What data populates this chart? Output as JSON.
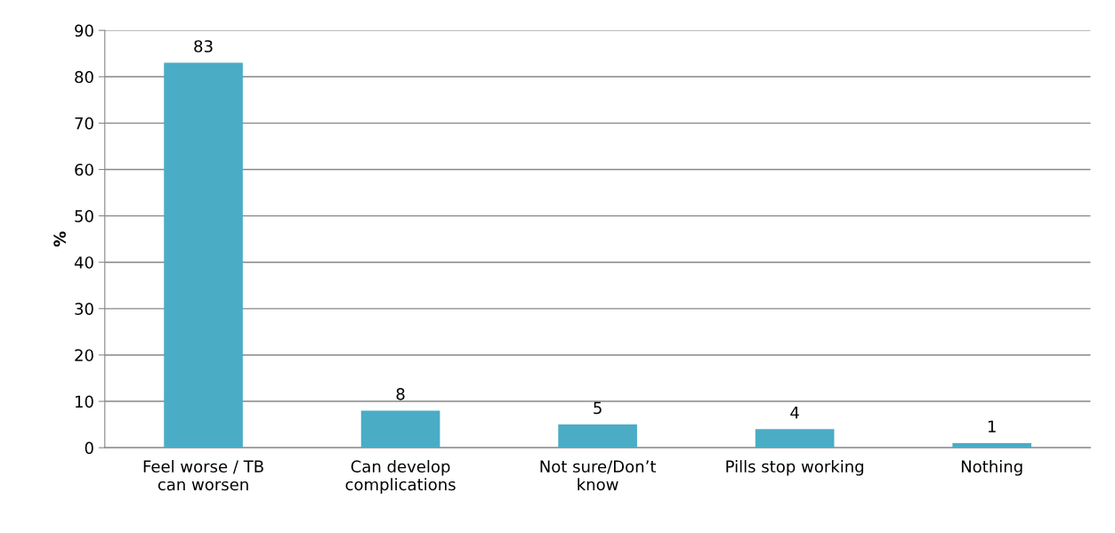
{
  "chart_data": {
    "type": "bar",
    "ylabel": "%",
    "categories": [
      "Feel worse / TB can worsen",
      "Can develop complications",
      "Not sure/Don’t know",
      "Pills stop working",
      "Nothing"
    ],
    "values": [
      83,
      8,
      5,
      4,
      1
    ],
    "color": "#4bacc6",
    "ylim": [
      0,
      90
    ],
    "yticks": [
      0,
      10,
      20,
      30,
      40,
      50,
      60,
      70,
      80,
      90
    ],
    "grid": "y",
    "data_labels": true
  }
}
